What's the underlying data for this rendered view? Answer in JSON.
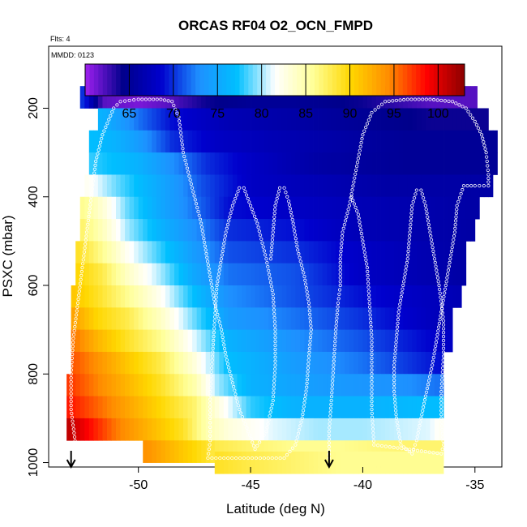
{
  "chart_data": {
    "type": "heatmap",
    "title": "ORCAS RF04 O2_OCN_FMPD",
    "flights_label": "Flts: 4",
    "date_label": "MMDD: 0123",
    "xlabel": "Latitude (deg N)",
    "ylabel": "PSXC (mbar)",
    "xlim": [
      -54,
      -33.8
    ],
    "ylim": [
      1010,
      60
    ],
    "y_reversed": true,
    "x_ticks": [
      -50,
      -45,
      -40,
      -35
    ],
    "x_tick_labels": [
      "-50",
      "-45",
      "-40",
      "-35"
    ],
    "y_ticks": [
      200,
      400,
      600,
      800,
      1000
    ],
    "y_tick_labels": [
      "200",
      "400",
      "600",
      "800",
      "1000"
    ],
    "colorbar": {
      "range": [
        60,
        103
      ],
      "ticks": [
        65,
        70,
        75,
        80,
        85,
        90,
        95,
        100
      ],
      "tick_labels": [
        "65",
        "70",
        "75",
        "80",
        "85",
        "90",
        "95",
        "100"
      ],
      "colors": [
        "#a020f0",
        "#00008b",
        "#0000cd",
        "#1e90ff",
        "#00bfff",
        "#ffffff",
        "#ffff99",
        "#ffd700",
        "#ff8c00",
        "#ff0000",
        "#8b0000"
      ]
    },
    "pressure_levels": [
      175,
      225,
      275,
      325,
      375,
      425,
      475,
      525,
      575,
      625,
      675,
      725,
      775,
      825,
      875,
      925,
      975
    ],
    "latitude_cells": [
      -53.5,
      -52.5,
      -51.5,
      -50.5,
      -49.5,
      -48.5,
      -47.5,
      -46.5,
      -45.5,
      -44.5,
      -43.5,
      -42.5,
      -41.5,
      -40.5,
      -39.5,
      -38.5,
      -37.5,
      -36.5,
      -35.5,
      -34.5
    ],
    "rows": [
      {
        "p": 175,
        "lat_min": -52.6,
        "lat_max": -34.9,
        "values": [
          [
            -52.4,
            70
          ],
          [
            -51.6,
            62
          ],
          [
            -50,
            61
          ],
          [
            -48.6,
            62
          ],
          [
            -47,
            64
          ],
          [
            -45,
            65
          ],
          [
            -43,
            65
          ],
          [
            -40,
            64
          ],
          [
            -37,
            62
          ],
          [
            -35.5,
            62
          ]
        ]
      },
      {
        "p": 225,
        "lat_min": -51.8,
        "lat_max": -34.4,
        "values": [
          [
            -51.6,
            76
          ],
          [
            -50.8,
            74
          ],
          [
            -50,
            72
          ],
          [
            -48.5,
            69
          ],
          [
            -46,
            67
          ],
          [
            -43,
            66
          ],
          [
            -40,
            65
          ],
          [
            -37,
            64
          ],
          [
            -34.6,
            64
          ]
        ]
      },
      {
        "p": 275,
        "lat_min": -52.2,
        "lat_max": -34.0,
        "values": [
          [
            -52,
            77
          ],
          [
            -51,
            76
          ],
          [
            -50,
            74
          ],
          [
            -48.5,
            70
          ],
          [
            -46.5,
            68
          ],
          [
            -44,
            67
          ],
          [
            -41,
            66
          ],
          [
            -38,
            65
          ],
          [
            -34.2,
            65
          ]
        ]
      },
      {
        "p": 325,
        "lat_min": -52.2,
        "lat_max": -34.0,
        "values": [
          [
            -52,
            78
          ],
          [
            -51,
            77
          ],
          [
            -50,
            76
          ],
          [
            -48.5,
            73
          ],
          [
            -47,
            70
          ],
          [
            -45,
            68
          ],
          [
            -42,
            66
          ],
          [
            -38,
            65
          ],
          [
            -34.2,
            65
          ]
        ]
      },
      {
        "p": 375,
        "lat_min": -52.4,
        "lat_max": -34.2,
        "values": [
          [
            -52.2,
            82
          ],
          [
            -51,
            79
          ],
          [
            -50,
            77
          ],
          [
            -48.5,
            74
          ],
          [
            -47.2,
            71
          ],
          [
            -45,
            68
          ],
          [
            -42,
            67
          ],
          [
            -39,
            66
          ],
          [
            -34.4,
            66
          ]
        ]
      },
      {
        "p": 425,
        "lat_min": -52.6,
        "lat_max": -34.8,
        "values": [
          [
            -52.4,
            86
          ],
          [
            -51.5,
            83
          ],
          [
            -50.5,
            79
          ],
          [
            -49,
            75
          ],
          [
            -47.5,
            72
          ],
          [
            -46,
            69
          ],
          [
            -43,
            68
          ],
          [
            -40,
            67
          ],
          [
            -35,
            66
          ]
        ]
      },
      {
        "p": 475,
        "lat_min": -52.6,
        "lat_max": -35.0,
        "values": [
          [
            -52.4,
            87
          ],
          [
            -51.5,
            84
          ],
          [
            -50.5,
            80
          ],
          [
            -49,
            76
          ],
          [
            -47.5,
            73
          ],
          [
            -46,
            70
          ],
          [
            -43,
            69
          ],
          [
            -40,
            67
          ],
          [
            -35.2,
            66
          ]
        ]
      },
      {
        "p": 525,
        "lat_min": -52.8,
        "lat_max": -35.4,
        "values": [
          [
            -52.6,
            89
          ],
          [
            -51.6,
            86
          ],
          [
            -50.5,
            82
          ],
          [
            -49,
            78
          ],
          [
            -47.5,
            74
          ],
          [
            -46,
            71
          ],
          [
            -43,
            70
          ],
          [
            -40,
            68
          ],
          [
            -35.6,
            66
          ]
        ]
      },
      {
        "p": 575,
        "lat_min": -52.8,
        "lat_max": -35.4,
        "values": [
          [
            -52.6,
            90
          ],
          [
            -51.6,
            88
          ],
          [
            -50.5,
            84
          ],
          [
            -49,
            80
          ],
          [
            -47.5,
            75
          ],
          [
            -46,
            72
          ],
          [
            -43,
            71
          ],
          [
            -40,
            68
          ],
          [
            -35.6,
            66
          ]
        ]
      },
      {
        "p": 625,
        "lat_min": -53.0,
        "lat_max": -35.6,
        "values": [
          [
            -52.8,
            91
          ],
          [
            -51.8,
            89
          ],
          [
            -50.5,
            86
          ],
          [
            -49,
            82
          ],
          [
            -47.5,
            77
          ],
          [
            -46,
            73
          ],
          [
            -43,
            71
          ],
          [
            -40,
            69
          ],
          [
            -35.8,
            67
          ]
        ]
      },
      {
        "p": 675,
        "lat_min": -53.0,
        "lat_max": -36.0,
        "values": [
          [
            -52.8,
            93
          ],
          [
            -51.8,
            90
          ],
          [
            -50.5,
            88
          ],
          [
            -49,
            84
          ],
          [
            -47.5,
            79
          ],
          [
            -46,
            74
          ],
          [
            -43,
            72
          ],
          [
            -40,
            70
          ],
          [
            -36.2,
            67
          ]
        ]
      },
      {
        "p": 725,
        "lat_min": -53.0,
        "lat_max": -36.0,
        "values": [
          [
            -52.8,
            95
          ],
          [
            -51.8,
            92
          ],
          [
            -50.5,
            89
          ],
          [
            -49,
            86
          ],
          [
            -47.5,
            81
          ],
          [
            -46,
            76
          ],
          [
            -43,
            73
          ],
          [
            -40,
            71
          ],
          [
            -36.2,
            68
          ]
        ]
      },
      {
        "p": 775,
        "lat_min": -53.0,
        "lat_max": -36.4,
        "values": [
          [
            -52.8,
            96
          ],
          [
            -51.8,
            94
          ],
          [
            -50.5,
            91
          ],
          [
            -49,
            88
          ],
          [
            -47.5,
            83
          ],
          [
            -46,
            77
          ],
          [
            -43,
            74
          ],
          [
            -40,
            72
          ],
          [
            -36.6,
            69
          ]
        ]
      },
      {
        "p": 825,
        "lat_min": -53.2,
        "lat_max": -36.4,
        "values": [
          [
            -53,
            97
          ],
          [
            -52,
            95
          ],
          [
            -50.5,
            92
          ],
          [
            -49,
            89
          ],
          [
            -47.5,
            85
          ],
          [
            -46.5,
            80
          ],
          [
            -45,
            76
          ],
          [
            -42,
            74
          ],
          [
            -38,
            73
          ],
          [
            -36.6,
            72
          ]
        ]
      },
      {
        "p": 875,
        "lat_min": -53.2,
        "lat_max": -36.4,
        "values": [
          [
            -53,
            98
          ],
          [
            -52,
            96
          ],
          [
            -50.5,
            93
          ],
          [
            -49,
            90
          ],
          [
            -47.5,
            87
          ],
          [
            -46.5,
            83
          ],
          [
            -45,
            78
          ],
          [
            -43,
            76
          ],
          [
            -40,
            76
          ],
          [
            -36.6,
            77
          ]
        ]
      },
      {
        "p": 925,
        "lat_min": -53.2,
        "lat_max": -36.4,
        "values": [
          [
            -53,
            101
          ],
          [
            -52,
            98
          ],
          [
            -51,
            95
          ],
          [
            -49.5,
            92
          ],
          [
            -48,
            89
          ],
          [
            -47,
            85
          ],
          [
            -46,
            83
          ],
          [
            -44,
            81
          ],
          [
            -42,
            80
          ],
          [
            -40,
            80
          ],
          [
            -37,
            81
          ],
          [
            -36.6,
            82
          ]
        ]
      },
      {
        "p": 975,
        "lat_min": -49.8,
        "lat_max": -36.4,
        "values": [
          [
            -49.6,
            94
          ],
          [
            -48.6,
            92
          ],
          [
            -47.5,
            90
          ],
          [
            -46.5,
            88
          ],
          [
            -45,
            87
          ],
          [
            -43,
            86
          ],
          [
            -41,
            86
          ],
          [
            -38,
            87
          ],
          [
            -36.6,
            87
          ]
        ]
      },
      {
        "p": 1000,
        "lat_min": -46.6,
        "lat_max": -36.4,
        "values": [
          [
            -46.4,
            89
          ],
          [
            -45,
            88
          ],
          [
            -43,
            87
          ],
          [
            -41,
            86
          ],
          [
            -39,
            86
          ],
          [
            -37,
            86
          ],
          [
            -36.6,
            86
          ]
        ]
      }
    ],
    "flight_track": [
      [
        -52.6,
        1000
      ],
      [
        -52.8,
        960
      ],
      [
        -53.0,
        880
      ],
      [
        -53.0,
        800
      ],
      [
        -52.9,
        720
      ],
      [
        -52.7,
        640
      ],
      [
        -52.5,
        560
      ],
      [
        -52.3,
        480
      ],
      [
        -52.1,
        400
      ],
      [
        -51.9,
        320
      ],
      [
        -51.6,
        260
      ],
      [
        -51.1,
        200
      ],
      [
        -50.8,
        185
      ],
      [
        -50,
        180
      ],
      [
        -49,
        180
      ],
      [
        -48.5,
        185
      ],
      [
        -48.2,
        220
      ],
      [
        -48.0,
        300
      ],
      [
        -47.6,
        380
      ],
      [
        -47.2,
        460
      ],
      [
        -47.0,
        520
      ],
      [
        -46.8,
        580
      ],
      [
        -46.6,
        640
      ],
      [
        -46.3,
        700
      ],
      [
        -46.1,
        760
      ],
      [
        -45.8,
        820
      ],
      [
        -45.5,
        880
      ],
      [
        -45.1,
        930
      ],
      [
        -44.8,
        970
      ],
      [
        -44.3,
        930
      ],
      [
        -44.0,
        860
      ],
      [
        -43.9,
        780
      ],
      [
        -43.9,
        700
      ],
      [
        -44.0,
        620
      ],
      [
        -44.3,
        540
      ],
      [
        -44.7,
        460
      ],
      [
        -45.0,
        420
      ],
      [
        -45.3,
        380
      ],
      [
        -45.5,
        380
      ],
      [
        -45.8,
        420
      ],
      [
        -46.1,
        480
      ],
      [
        -46.3,
        540
      ],
      [
        -46.5,
        600
      ],
      [
        -46.6,
        680
      ],
      [
        -46.7,
        760
      ],
      [
        -46.8,
        840
      ],
      [
        -46.8,
        900
      ],
      [
        -46.8,
        950
      ],
      [
        -46.9,
        990
      ],
      [
        -43.5,
        990
      ],
      [
        -43.0,
        960
      ],
      [
        -42.7,
        900
      ],
      [
        -42.5,
        830
      ],
      [
        -42.4,
        760
      ],
      [
        -42.3,
        700
      ],
      [
        -42.4,
        640
      ],
      [
        -42.6,
        580
      ],
      [
        -42.9,
        520
      ],
      [
        -43.1,
        460
      ],
      [
        -43.3,
        410
      ],
      [
        -43.5,
        380
      ],
      [
        -43.7,
        380
      ],
      [
        -43.9,
        420
      ],
      [
        -44.0,
        480
      ],
      [
        -44.1,
        540
      ],
      [
        -41.5,
        990
      ],
      [
        -41.5,
        930
      ],
      [
        -41.4,
        860
      ],
      [
        -41.3,
        780
      ],
      [
        -41.2,
        700
      ],
      [
        -41.1,
        640
      ],
      [
        -41.0,
        600
      ],
      [
        -41.0,
        540
      ],
      [
        -40.9,
        480
      ],
      [
        -40.6,
        420
      ],
      [
        -40.3,
        340
      ],
      [
        -40.0,
        260
      ],
      [
        -39.6,
        210
      ],
      [
        -39.0,
        185
      ],
      [
        -38,
        180
      ],
      [
        -37,
        180
      ],
      [
        -36,
        185
      ],
      [
        -35.4,
        200
      ],
      [
        -35.0,
        230
      ],
      [
        -34.7,
        260
      ],
      [
        -34.5,
        300
      ],
      [
        -34.4,
        350
      ],
      [
        -34.4,
        375
      ],
      [
        -35,
        375
      ],
      [
        -35.5,
        375
      ],
      [
        -35.8,
        420
      ],
      [
        -35.9,
        480
      ],
      [
        -36.1,
        540
      ],
      [
        -36.3,
        600
      ],
      [
        -36.5,
        660
      ],
      [
        -36.7,
        720
      ],
      [
        -36.9,
        780
      ],
      [
        -37.2,
        850
      ],
      [
        -37.4,
        900
      ],
      [
        -37.6,
        950
      ],
      [
        -37.8,
        980
      ],
      [
        -38.3,
        960
      ],
      [
        -38.5,
        900
      ],
      [
        -38.6,
        840
      ],
      [
        -38.6,
        780
      ],
      [
        -38.5,
        720
      ],
      [
        -38.4,
        660
      ],
      [
        -38.2,
        600
      ],
      [
        -38.0,
        540
      ],
      [
        -37.9,
        480
      ],
      [
        -37.8,
        420
      ],
      [
        -37.6,
        385
      ],
      [
        -37.4,
        385
      ],
      [
        -37.2,
        420
      ],
      [
        -37.0,
        480
      ],
      [
        -36.8,
        540
      ],
      [
        -36.6,
        600
      ],
      [
        -36.4,
        680
      ],
      [
        -36.4,
        760
      ],
      [
        -36.5,
        840
      ],
      [
        -36.5,
        900
      ],
      [
        -36.4,
        960
      ],
      [
        -36.5,
        980
      ],
      [
        -39.5,
        960
      ],
      [
        -39.6,
        880
      ],
      [
        -39.6,
        800
      ],
      [
        -39.6,
        720
      ],
      [
        -39.7,
        640
      ],
      [
        -39.8,
        560
      ],
      [
        -40.0,
        500
      ],
      [
        -40.2,
        440
      ],
      [
        -40.5,
        400
      ]
    ],
    "markers": [
      {
        "lat": -53,
        "label": "↓"
      },
      {
        "lat": -41.5,
        "label": "↓"
      }
    ]
  }
}
